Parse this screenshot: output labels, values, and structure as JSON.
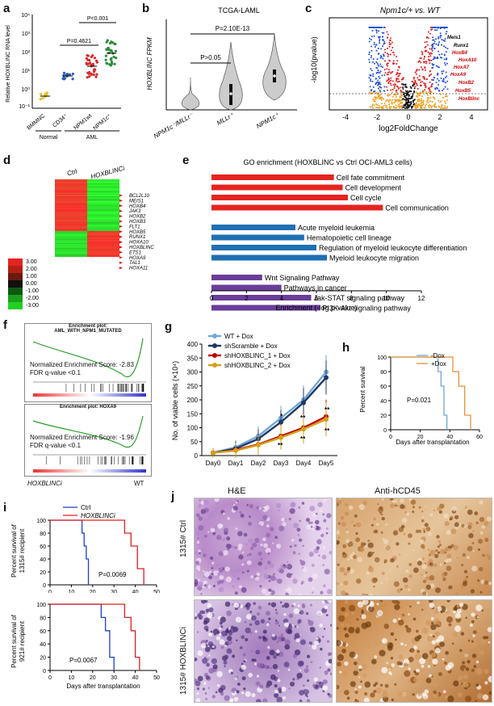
{
  "panels": {
    "a": {
      "label": "a"
    },
    "b": {
      "label": "b",
      "title": "TCGA-LAML"
    },
    "c": {
      "label": "c"
    },
    "d": {
      "label": "d"
    },
    "e": {
      "label": "e",
      "title": "GO enrichment (HOXBLINC vs Ctrl OCI-AML3 cells)"
    },
    "f": {
      "label": "f"
    },
    "g": {
      "label": "g"
    },
    "h": {
      "label": "h"
    },
    "i": {
      "label": "i"
    },
    "j": {
      "label": "j",
      "col1": "H&E",
      "col2": "Anti-hCD45",
      "row1": "1315# Ctrl",
      "row2": "1315# HOXBLINCi"
    }
  },
  "panel_a": {
    "ylabel": "Relative HOXBLINC RNA level",
    "yticks": [
      "10⁴",
      "10³",
      "10²",
      "10¹",
      "10⁰",
      "10⁻¹"
    ],
    "categories": [
      "BMMNC",
      "CD34⁺",
      "NPM1wt",
      "NPM1c⁺"
    ],
    "groups": [
      "Normal",
      "AML"
    ],
    "p1": "P=0.4621",
    "p2": "P<0.001"
  },
  "panel_b": {
    "ylabel": "HOXBLINC FPKM",
    "categories": [
      "NPM1c⁻/MLLr⁻",
      "MLLr⁺",
      "NPM1c⁺"
    ],
    "p1": "P>0.05",
    "p2": "P=2.10E-13"
  },
  "panel_c": {
    "title": "Npm1c/+ vs. WT",
    "xlabel": "log2FoldChange",
    "ylabel": "-log10(pvalue)",
    "xticks": [
      "-4",
      "-2",
      "0",
      "2",
      "4"
    ],
    "genes": [
      "Meis1",
      "Runx1",
      "HoxB4",
      "HoxA10",
      "HoxA7",
      "HoxA9",
      "HoxB2",
      "HoxB5",
      "HoxBlinc"
    ]
  },
  "panel_d": {
    "col1": "Ctrl",
    "col2": "HOXBLINCi",
    "genes": [
      "BCL2L10",
      "MEIS1",
      "HOXB4",
      "JAK3",
      "HOXB2",
      "HOXB3",
      "FLT1",
      "HOXB5",
      "RUNX1",
      "HOXA10",
      "HOXBLINC",
      "ETS1",
      "HOXA9",
      "TAL1",
      "HOXA11"
    ],
    "scale": [
      "3.00",
      "2.00",
      "1.00",
      "0.00",
      "-1.00",
      "-2.00",
      "-3.00"
    ]
  },
  "chart_data": [
    {
      "type": "bar",
      "title": "GO enrichment (HOXBLINC vs Ctrl OCI-AML3 cells)",
      "xlabel": "Enrichment (-log p-value)",
      "xticks": [
        "0",
        "2",
        "4",
        "6",
        "8",
        "10",
        "12"
      ],
      "xlim": [
        0,
        12
      ],
      "categories": [
        "Cell fate commitment",
        "Cell development",
        "Cell cycle",
        "Cell communication",
        "Acute myeloid leukemia",
        "Hematopoietic cell lineage",
        "Regulation of myeloid leukocyte differentiation",
        "Myeloid leukocyte migration",
        "Wnt Signaling Pathway",
        "Pathways in cancer",
        "Jak-STAT signaling pathway",
        "PI3K-Akt signaling pathway"
      ],
      "values": [
        7.0,
        7.5,
        7.8,
        9.8,
        4.8,
        5.3,
        6.0,
        6.6,
        2.9,
        4.0,
        5.7,
        6.2
      ],
      "colors": [
        "#e52420",
        "#e52420",
        "#e52420",
        "#e52420",
        "#1f6fb2",
        "#1f6fb2",
        "#1f6fb2",
        "#1f6fb2",
        "#6a3d9a",
        "#6a3d9a",
        "#6a3d9a",
        "#6a3d9a"
      ]
    },
    {
      "type": "line",
      "ylabel": "No. of viable cells (×10⁴)",
      "categories": [
        "Day0",
        "Day1",
        "Day2",
        "Day3",
        "Day4",
        "Day5"
      ],
      "ylim": [
        0,
        400
      ],
      "yticks": [
        "0",
        "50",
        "100",
        "150",
        "200",
        "250",
        "300",
        "350",
        "400"
      ],
      "series": [
        {
          "name": "WT + Dox",
          "color": "#6fa8dc",
          "values": [
            10,
            30,
            70,
            135,
            200,
            300
          ]
        },
        {
          "name": "shScramble + Dox",
          "color": "#1f3864",
          "values": [
            10,
            25,
            60,
            120,
            190,
            280
          ]
        },
        {
          "name": "shHOXBLINC_1 + Dox",
          "color": "#c00000",
          "values": [
            10,
            20,
            40,
            70,
            100,
            140
          ]
        },
        {
          "name": "shHOXBLINC_2 + Dox",
          "color": "#d4a017",
          "values": [
            10,
            18,
            38,
            65,
            95,
            130
          ]
        }
      ]
    },
    {
      "type": "line",
      "ylabel": "Percent survival",
      "xlabel": "Days after transplantation",
      "xticks": [
        "0",
        "20",
        "40",
        "60"
      ],
      "yticks": [
        "0",
        "20",
        "40",
        "60",
        "80",
        "100"
      ],
      "xlim": [
        0,
        60
      ],
      "ylim": [
        0,
        100
      ],
      "annotation": "P=0.021",
      "series": [
        {
          "name": "-Dox",
          "color": "#6fa8dc",
          "x": [
            0,
            32,
            32,
            34,
            34,
            36,
            36,
            38,
            38
          ],
          "y": [
            100,
            100,
            80,
            80,
            60,
            60,
            20,
            20,
            0
          ]
        },
        {
          "name": "+Dox",
          "color": "#e69138",
          "x": [
            0,
            42,
            42,
            46,
            46,
            50,
            50,
            54,
            54
          ],
          "y": [
            100,
            100,
            80,
            80,
            60,
            60,
            20,
            20,
            0
          ]
        }
      ]
    },
    {
      "type": "line",
      "ylabel": "Percent survival of 1315# recipient",
      "xlabel": "",
      "xticks": [
        "0",
        "10",
        "20",
        "30",
        "40",
        "50"
      ],
      "yticks": [
        "0",
        "20",
        "40",
        "60",
        "80",
        "100"
      ],
      "xlim": [
        0,
        50
      ],
      "ylim": [
        0,
        100
      ],
      "annotation": "P=0.0069",
      "series": [
        {
          "name": "Ctrl",
          "color": "#1c3fd1",
          "x": [
            0,
            15,
            15,
            16,
            16,
            17,
            17,
            18,
            18
          ],
          "y": [
            100,
            100,
            80,
            80,
            60,
            60,
            40,
            40,
            0
          ]
        },
        {
          "name": "HOXBLINCi",
          "color": "#e02020",
          "x": [
            0,
            35,
            35,
            38,
            38,
            41,
            41,
            44,
            44
          ],
          "y": [
            100,
            100,
            80,
            80,
            60,
            60,
            25,
            25,
            0
          ]
        }
      ]
    },
    {
      "type": "line",
      "ylabel": "Percent survival of 921# recipient",
      "xlabel": "Days after transplantation",
      "xticks": [
        "0",
        "10",
        "20",
        "30",
        "40",
        "50"
      ],
      "yticks": [
        "0",
        "20",
        "40",
        "60",
        "80",
        "100"
      ],
      "xlim": [
        0,
        50
      ],
      "ylim": [
        0,
        100
      ],
      "annotation": "P=0.0067",
      "series": [
        {
          "name": "Ctrl",
          "color": "#1c3fd1",
          "x": [
            0,
            24,
            24,
            26,
            26,
            28,
            28,
            30,
            30
          ],
          "y": [
            100,
            100,
            80,
            80,
            60,
            60,
            20,
            20,
            0
          ]
        },
        {
          "name": "HOXBLINCi",
          "color": "#e02020",
          "x": [
            0,
            35,
            35,
            38,
            38,
            40,
            40,
            42,
            42
          ],
          "y": [
            100,
            100,
            80,
            80,
            60,
            60,
            20,
            20,
            0
          ]
        }
      ]
    }
  ],
  "panel_f": {
    "plot1_title": "Enrichment plot:\nAML_WITH_NPM1_MUTATED",
    "plot1_nes": "Normalized Enrichment Score: -2.83",
    "plot1_fdr": "FDR q-value <0.1",
    "plot2_title": "Enrichment plot: HOXA9",
    "plot2_nes": "Normalized Enrichment Score: -1.96",
    "plot2_fdr": "FDR q-value <0.1",
    "left_label": "HOXBLINCi",
    "right_label": "WT"
  }
}
